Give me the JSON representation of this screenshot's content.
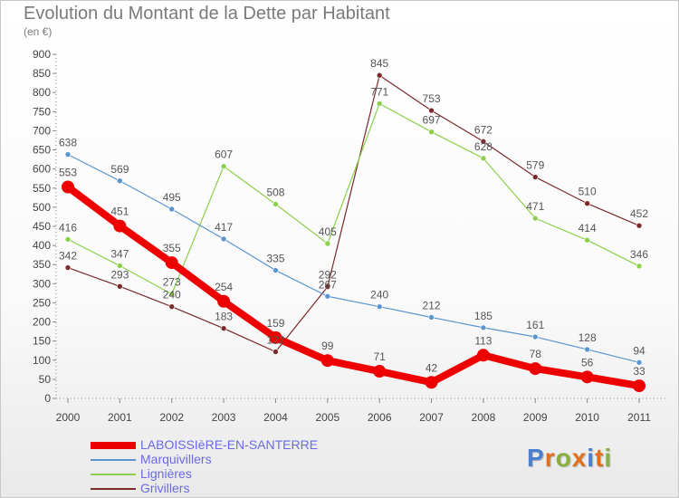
{
  "header": {
    "title": "Evolution du Montant de la Dette par Habitant",
    "subtitle": "(en €)"
  },
  "logo": {
    "text": "Proxiti",
    "letters": [
      {
        "ch": "P",
        "color": "#4a7fd0"
      },
      {
        "ch": "r",
        "color": "#e07020"
      },
      {
        "ch": "o",
        "color": "#8ab040"
      },
      {
        "ch": "x",
        "color": "#e07020"
      },
      {
        "ch": "i",
        "color": "#4a7fd0"
      },
      {
        "ch": "t",
        "color": "#e07020"
      },
      {
        "ch": "i",
        "color": "#8ab040"
      }
    ]
  },
  "chart_data": {
    "type": "line",
    "title": "Evolution du Montant de la Dette par Habitant",
    "subtitle": "(en €)",
    "x": [
      "2000",
      "2001",
      "2002",
      "2003",
      "2004",
      "2005",
      "2006",
      "2007",
      "2008",
      "2009",
      "2010",
      "2011"
    ],
    "ylim": [
      0,
      900
    ],
    "yticks": [
      0,
      50,
      100,
      150,
      200,
      250,
      300,
      350,
      400,
      450,
      500,
      550,
      600,
      650,
      700,
      750,
      800,
      850,
      900
    ],
    "grid": false,
    "legend_position": "bottom-left",
    "series": [
      {
        "name": "LABOISSIèRE-EN-SANTERRE",
        "color": "#ee0000",
        "thick": true,
        "values": [
          553,
          451,
          355,
          254,
          159,
          99,
          71,
          42,
          113,
          78,
          56,
          33
        ]
      },
      {
        "name": "Marquivillers",
        "color": "#5b95cf",
        "thick": false,
        "values": [
          638,
          569,
          495,
          417,
          335,
          267,
          240,
          212,
          185,
          161,
          128,
          94
        ]
      },
      {
        "name": "Lignières",
        "color": "#8ad04a",
        "thick": false,
        "values": [
          416,
          347,
          273,
          607,
          508,
          405,
          771,
          697,
          628,
          471,
          414,
          346
        ]
      },
      {
        "name": "Grivillers",
        "color": "#7a2a2a",
        "thick": false,
        "values": [
          342,
          293,
          240,
          183,
          122,
          292,
          845,
          753,
          672,
          579,
          510,
          452
        ]
      }
    ]
  }
}
